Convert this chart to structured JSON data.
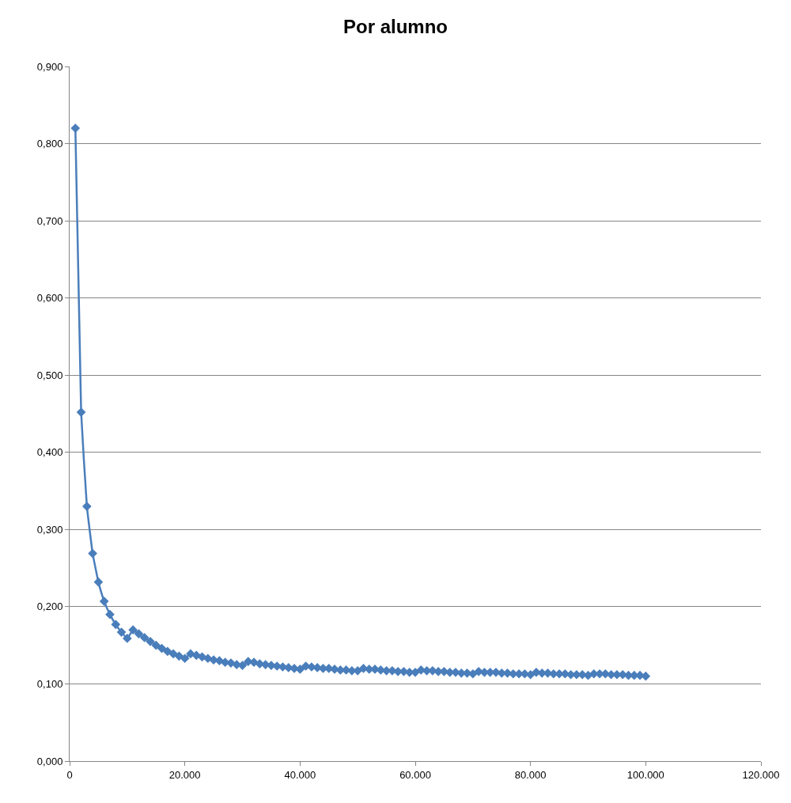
{
  "chart_data": {
    "type": "line",
    "title": "Por alumno",
    "x": [
      1000,
      2000,
      3000,
      4000,
      5000,
      6000,
      7000,
      8000,
      9000,
      10000,
      11000,
      12000,
      13000,
      14000,
      15000,
      16000,
      17000,
      18000,
      19000,
      20000,
      21000,
      22000,
      23000,
      24000,
      25000,
      26000,
      27000,
      28000,
      29000,
      30000,
      31000,
      32000,
      33000,
      34000,
      35000,
      36000,
      37000,
      38000,
      39000,
      40000,
      41000,
      42000,
      43000,
      44000,
      45000,
      46000,
      47000,
      48000,
      49000,
      50000,
      51000,
      52000,
      53000,
      54000,
      55000,
      56000,
      57000,
      58000,
      59000,
      60000,
      61000,
      62000,
      63000,
      64000,
      65000,
      66000,
      67000,
      68000,
      69000,
      70000,
      71000,
      72000,
      73000,
      74000,
      75000,
      76000,
      77000,
      78000,
      79000,
      80000,
      81000,
      82000,
      83000,
      84000,
      85000,
      86000,
      87000,
      88000,
      89000,
      90000,
      91000,
      92000,
      93000,
      94000,
      95000,
      96000,
      97000,
      98000,
      99000,
      100000
    ],
    "series": [
      {
        "color": "#4a7ebb",
        "values": [
          0.82,
          0.452,
          0.33,
          0.269,
          0.232,
          0.207,
          0.19,
          0.177,
          0.167,
          0.159,
          0.17,
          0.165,
          0.16,
          0.155,
          0.15,
          0.146,
          0.142,
          0.139,
          0.136,
          0.133,
          0.139,
          0.137,
          0.135,
          0.133,
          0.131,
          0.13,
          0.128,
          0.127,
          0.125,
          0.124,
          0.129,
          0.128,
          0.126,
          0.125,
          0.124,
          0.123,
          0.122,
          0.121,
          0.12,
          0.119,
          0.123,
          0.122,
          0.121,
          0.12,
          0.12,
          0.119,
          0.118,
          0.118,
          0.117,
          0.117,
          0.12,
          0.119,
          0.119,
          0.118,
          0.117,
          0.117,
          0.116,
          0.116,
          0.115,
          0.115,
          0.118,
          0.117,
          0.117,
          0.116,
          0.116,
          0.115,
          0.115,
          0.114,
          0.114,
          0.113,
          0.116,
          0.115,
          0.115,
          0.115,
          0.114,
          0.114,
          0.113,
          0.113,
          0.113,
          0.112,
          0.115,
          0.114,
          0.114,
          0.113,
          0.113,
          0.113,
          0.112,
          0.112,
          0.112,
          0.111,
          0.113,
          0.113,
          0.113,
          0.112,
          0.112,
          0.112,
          0.111,
          0.111,
          0.111,
          0.11
        ]
      }
    ],
    "xlim": [
      0,
      120000
    ],
    "xticks": [
      0,
      {
        "value": 20000,
        "label": "20.000"
      },
      {
        "value": 40000,
        "label": "40.000"
      },
      {
        "value": 60000,
        "label": "60.000"
      },
      {
        "value": 80000,
        "label": "80.000"
      },
      {
        "value": 100000,
        "label": "100.000"
      },
      {
        "value": 120000,
        "label": "120.000"
      }
    ],
    "ylim": [
      0,
      0.9
    ],
    "yticks": [
      {
        "value": 0,
        "label": "0,000"
      },
      {
        "value": 0.1,
        "label": "0,100"
      },
      {
        "value": 0.2,
        "label": "0,200"
      },
      {
        "value": 0.3,
        "label": "0,300"
      },
      {
        "value": 0.4,
        "label": "0,400"
      },
      {
        "value": 0.5,
        "label": "0,500"
      },
      {
        "value": 0.6,
        "label": "0,600"
      },
      {
        "value": 0.7,
        "label": "0,700"
      },
      {
        "value": 0.8,
        "label": "0,800"
      },
      {
        "value": 0.9,
        "label": "0,900"
      }
    ],
    "grid": "y",
    "marker": "diamond",
    "line_style": "solid"
  }
}
